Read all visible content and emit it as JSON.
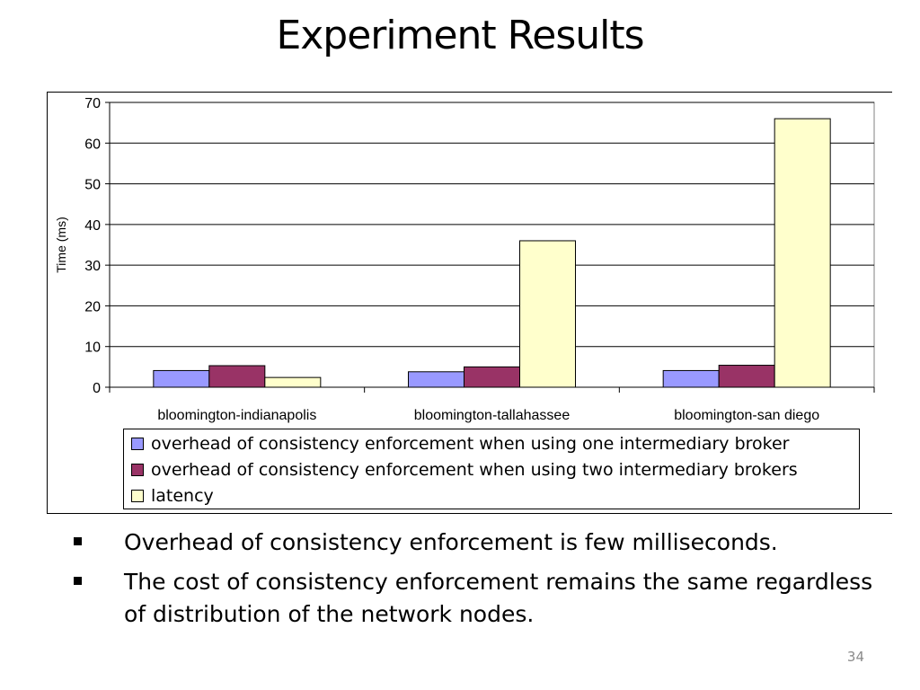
{
  "slide": {
    "title": "Experiment Results",
    "page_number": "34",
    "bullets": [
      "Overhead of consistency enforcement is few milliseconds.",
      "The cost of consistency enforcement remains the same regardless of distribution of the network nodes."
    ]
  },
  "chart_data": {
    "type": "bar",
    "title": "",
    "xlabel": "",
    "ylabel": "Time (ms)",
    "ylim": [
      0,
      70
    ],
    "yticks": [
      0,
      10,
      20,
      30,
      40,
      50,
      60,
      70
    ],
    "grid": true,
    "legend_position": "bottom",
    "categories": [
      "bloomington-indianapolis",
      "bloomington-tallahassee",
      "bloomington-san diego"
    ],
    "series": [
      {
        "name": "overhead of consistency enforcement when using one intermediary broker",
        "values": [
          4.1,
          3.8,
          4.1
        ],
        "color": "#9999ff"
      },
      {
        "name": "overhead of consistency enforcement when using two intermediary brokers",
        "values": [
          5.3,
          5.0,
          5.4
        ],
        "color": "#993366"
      },
      {
        "name": "latency",
        "values": [
          2.4,
          36,
          66
        ],
        "color": "#ffffcc"
      }
    ]
  }
}
